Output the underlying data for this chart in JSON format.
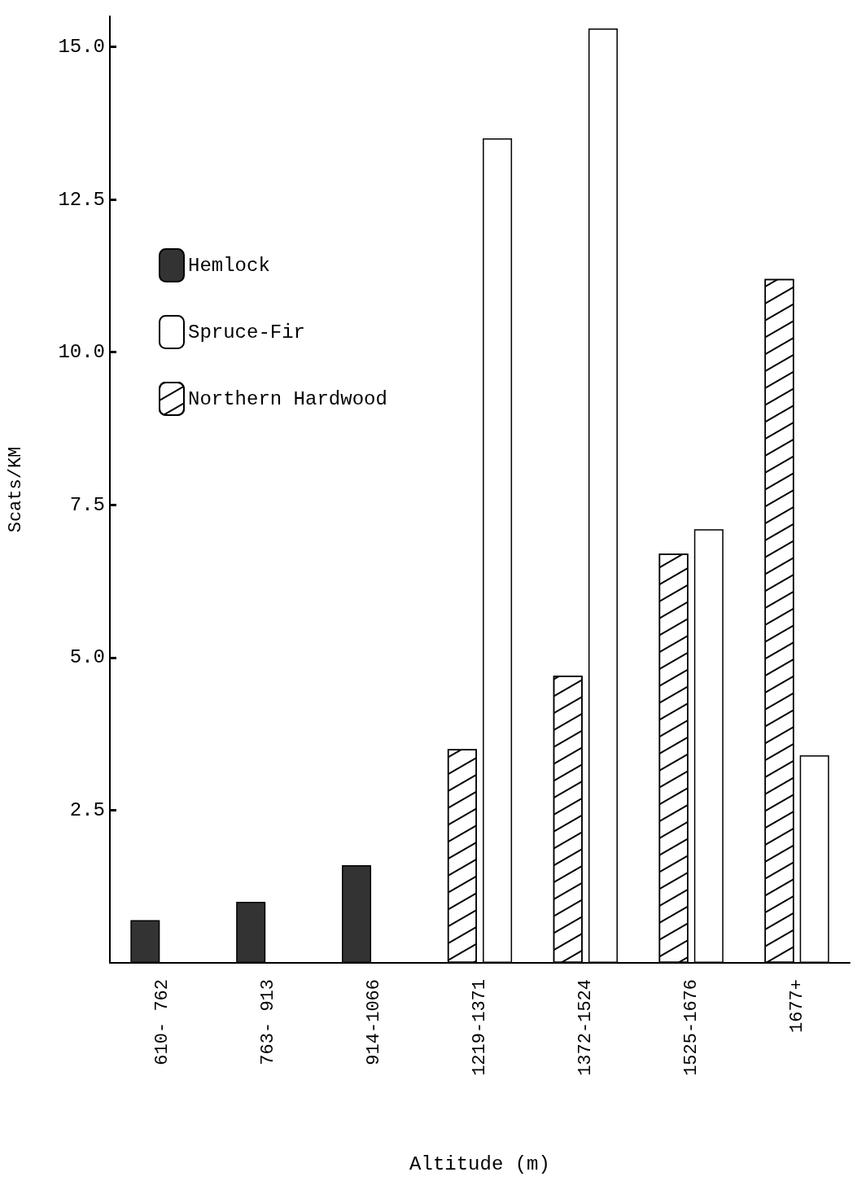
{
  "chart_data": {
    "type": "bar",
    "xlabel": "Altitude (m)",
    "ylabel": "Scats/KM",
    "categories": [
      "610- 762",
      "763- 913",
      "914-1066",
      "1219-1371",
      "1372-1524",
      "1525-1676",
      "1677+"
    ],
    "series": [
      {
        "name": "Hemlock",
        "color": "#333333",
        "values": [
          0.7,
          1.0,
          1.6,
          null,
          null,
          null,
          null
        ]
      },
      {
        "name": "Spruce-Fir",
        "color": "#ffffff",
        "values": [
          null,
          null,
          null,
          13.5,
          15.3,
          7.1,
          3.4
        ]
      },
      {
        "name": "Northern Hardwood",
        "color": "#ffffff",
        "values": [
          null,
          null,
          null,
          3.5,
          4.7,
          6.7,
          11.2
        ]
      }
    ],
    "ylim": [
      0,
      15.5
    ],
    "yticks": [
      {
        "value": 2.5,
        "label": "2.5"
      },
      {
        "value": 5,
        "label": "5.0"
      },
      {
        "value": 7.5,
        "label": "7.5"
      },
      {
        "value": 10,
        "label": "10.0"
      },
      {
        "value": 12.5,
        "label": "12.5"
      },
      {
        "value": 15,
        "label": "15.0"
      }
    ],
    "grid": false,
    "legend": "top left"
  }
}
